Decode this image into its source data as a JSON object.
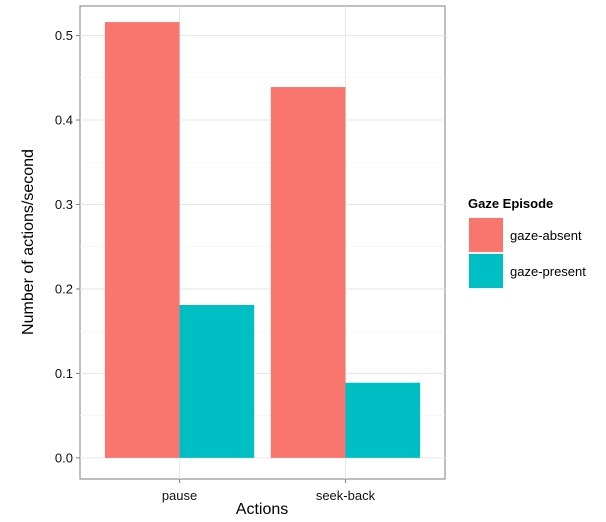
{
  "chart_data": {
    "type": "bar",
    "categories": [
      "pause",
      "seek-back"
    ],
    "series": [
      {
        "name": "gaze-absent",
        "values": [
          0.516,
          0.439
        ],
        "color": "#F8766D"
      },
      {
        "name": "gaze-present",
        "values": [
          0.181,
          0.089
        ],
        "color": "#00BFC4"
      }
    ],
    "xlabel": "Actions",
    "ylabel": "Number of actions/second",
    "ylim": [
      -0.025,
      0.535
    ],
    "yticks": [
      "0.0",
      "0.1",
      "0.2",
      "0.3",
      "0.4",
      "0.5"
    ],
    "legend": {
      "title": "Gaze Episode",
      "placement": "right"
    },
    "grid": true
  }
}
